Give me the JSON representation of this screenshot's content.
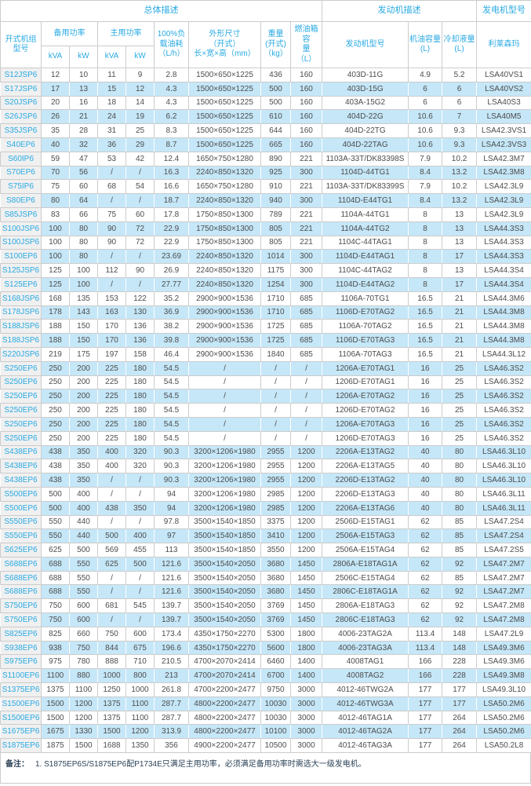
{
  "table": {
    "header": {
      "group_overall": "总体描述",
      "group_engine": "发动机描述",
      "group_alternator": "发电机型号",
      "col_model": "开式机组\n型号",
      "col_standby_power": "备用功率",
      "col_prime_power": "主用功率",
      "unit_kva": "kVA",
      "unit_kw": "kW",
      "col_fuel_consumption": "100%负\n载油耗\n（L/h）",
      "col_dimensions": "外形尺寸\n（开式）\n长×宽×高（mm）",
      "col_weight": "重量\n(开式)\n（kg）",
      "col_tank_capacity": "燃油箱容\n量\n（L）",
      "col_engine_model": "发动机型号",
      "col_oil_capacity": "机油容量\n(L)",
      "col_coolant_capacity": "冷却液量\n(L)",
      "col_alternator_brand": "利莱森玛"
    },
    "columns": [
      "model",
      "standby-kva",
      "standby-kw",
      "prime-kva",
      "prime-kw",
      "fuel-consumption",
      "dimensions",
      "weight",
      "tank-capacity",
      "engine-model",
      "oil-capacity",
      "coolant-capacity",
      "alternator-model"
    ],
    "rows": [
      [
        "S12JSP6",
        "12",
        "10",
        "11",
        "9",
        "2.8",
        "1500×650×1225",
        "436",
        "160",
        "403D-11G",
        "4.9",
        "5.2",
        "LSA40VS1"
      ],
      [
        "S17JSP6",
        "17",
        "13",
        "15",
        "12",
        "4.3",
        "1500×650×1225",
        "500",
        "160",
        "403D-15G",
        "6",
        "6",
        "LSA40VS2"
      ],
      [
        "S20JSP6",
        "20",
        "16",
        "18",
        "14",
        "4.3",
        "1500×650×1225",
        "500",
        "160",
        "403A-15G2",
        "6",
        "6",
        "LSA40S3"
      ],
      [
        "S26JSP6",
        "26",
        "21",
        "24",
        "19",
        "6.2",
        "1500×650×1225",
        "610",
        "160",
        "404D-22G",
        "10.6",
        "7",
        "LSA40M5"
      ],
      [
        "S35JSP6",
        "35",
        "28",
        "31",
        "25",
        "8.3",
        "1500×650×1225",
        "644",
        "160",
        "404D-22TG",
        "10.6",
        "9.3",
        "LSA42.3VS1"
      ],
      [
        "S40EP6",
        "40",
        "32",
        "36",
        "29",
        "8.7",
        "1500×650×1225",
        "665",
        "160",
        "404D-22TAG",
        "10.6",
        "9.3",
        "LSA42.3VS3"
      ],
      [
        "S60IP6",
        "59",
        "47",
        "53",
        "42",
        "12.4",
        "1650×750×1280",
        "890",
        "221",
        "1103A-33T/DK83398S",
        "7.9",
        "10.2",
        "LSA42.3M7"
      ],
      [
        "S70EP6",
        "70",
        "56",
        "/",
        "/",
        "16.3",
        "2240×850×1320",
        "925",
        "300",
        "1104D-44TG1",
        "8.4",
        "13.2",
        "LSA42.3M8"
      ],
      [
        "S75IP6",
        "75",
        "60",
        "68",
        "54",
        "16.6",
        "1650×750×1280",
        "910",
        "221",
        "1103A-33T/DK83399S",
        "7.9",
        "10.2",
        "LSA42.3L9"
      ],
      [
        "S80EP6",
        "80",
        "64",
        "/",
        "/",
        "18.7",
        "2240×850×1320",
        "940",
        "300",
        "1104D-E44TG1",
        "8.4",
        "13.2",
        "LSA42.3L9"
      ],
      [
        "S85JSP6",
        "83",
        "66",
        "75",
        "60",
        "17.8",
        "1750×850×1300",
        "789",
        "221",
        "1104A-44TG1",
        "8",
        "13",
        "LSA42.3L9"
      ],
      [
        "S100JSP6",
        "100",
        "80",
        "90",
        "72",
        "22.9",
        "1750×850×1300",
        "805",
        "221",
        "1104A-44TG2",
        "8",
        "13",
        "LSA44.3S3"
      ],
      [
        "S100JSP6",
        "100",
        "80",
        "90",
        "72",
        "22.9",
        "1750×850×1300",
        "805",
        "221",
        "1104C-44TAG1",
        "8",
        "13",
        "LSA44.3S3"
      ],
      [
        "S100EP6",
        "100",
        "80",
        "/",
        "/",
        "23.69",
        "2240×850×1320",
        "1014",
        "300",
        "1104D-E44TAG1",
        "8",
        "17",
        "LSA44.3S3"
      ],
      [
        "S125JSP6",
        "125",
        "100",
        "112",
        "90",
        "26.9",
        "2240×850×1320",
        "1175",
        "300",
        "1104C-44TAG2",
        "8",
        "13",
        "LSA44.3S4"
      ],
      [
        "S125EP6",
        "125",
        "100",
        "/",
        "/",
        "27.77",
        "2240×850×1320",
        "1254",
        "300",
        "1104D-E44TAG2",
        "8",
        "17",
        "LSA44.3S4"
      ],
      [
        "S168JSP6",
        "168",
        "135",
        "153",
        "122",
        "35.2",
        "2900×900×1536",
        "1710",
        "685",
        "1106A-70TG1",
        "16.5",
        "21",
        "LSA44.3M6"
      ],
      [
        "S178JSP6",
        "178",
        "143",
        "163",
        "130",
        "36.9",
        "2900×900×1536",
        "1710",
        "685",
        "1106D-E70TAG2",
        "16.5",
        "21",
        "LSA44.3M8"
      ],
      [
        "S188JSP6",
        "188",
        "150",
        "170",
        "136",
        "38.2",
        "2900×900×1536",
        "1725",
        "685",
        "1106A-70TAG2",
        "16.5",
        "21",
        "LSA44.3M8"
      ],
      [
        "S188JSP6",
        "188",
        "150",
        "170",
        "136",
        "39.8",
        "2900×900×1536",
        "1725",
        "685",
        "1106D-E70TAG3",
        "16.5",
        "21",
        "LSA44.3M8"
      ],
      [
        "S220JSP6",
        "219",
        "175",
        "197",
        "158",
        "46.4",
        "2900×900×1536",
        "1840",
        "685",
        "1106A-70TAG3",
        "16.5",
        "21",
        "LSA44.3L12"
      ],
      [
        "S250EP6",
        "250",
        "200",
        "225",
        "180",
        "54.5",
        "/",
        "/",
        "/",
        "1206A-E70TAG1",
        "16",
        "25",
        "LSA46.3S2"
      ],
      [
        "S250EP6",
        "250",
        "200",
        "225",
        "180",
        "54.5",
        "/",
        "/",
        "/",
        "1206D-E70TAG1",
        "16",
        "25",
        "LSA46.3S2"
      ],
      [
        "S250EP6",
        "250",
        "200",
        "225",
        "180",
        "54.5",
        "/",
        "/",
        "/",
        "1206A-E70TAG2",
        "16",
        "25",
        "LSA46.3S2"
      ],
      [
        "S250EP6",
        "250",
        "200",
        "225",
        "180",
        "54.5",
        "/",
        "/",
        "/",
        "1206D-E70TAG2",
        "16",
        "25",
        "LSA46.3S2"
      ],
      [
        "S250EP6",
        "250",
        "200",
        "225",
        "180",
        "54.5",
        "/",
        "/",
        "/",
        "1206A-E70TAG3",
        "16",
        "25",
        "LSA46.3S2"
      ],
      [
        "S250EP6",
        "250",
        "200",
        "225",
        "180",
        "54.5",
        "/",
        "/",
        "/",
        "1206D-E70TAG3",
        "16",
        "25",
        "LSA46.3S2"
      ],
      [
        "S438EP6",
        "438",
        "350",
        "400",
        "320",
        "90.3",
        "3200×1206×1980",
        "2955",
        "1200",
        "2206A-E13TAG2",
        "40",
        "80",
        "LSA46.3L10"
      ],
      [
        "S438EP6",
        "438",
        "350",
        "400",
        "320",
        "90.3",
        "3200×1206×1980",
        "2955",
        "1200",
        "2206A-E13TAG5",
        "40",
        "80",
        "LSA46.3L10"
      ],
      [
        "S438EP6",
        "438",
        "350",
        "/",
        "/",
        "90.3",
        "3200×1206×1980",
        "2955",
        "1200",
        "2206D-E13TAG2",
        "40",
        "80",
        "LSA46.3L10"
      ],
      [
        "S500EP6",
        "500",
        "400",
        "/",
        "/",
        "94",
        "3200×1206×1980",
        "2985",
        "1200",
        "2206D-E13TAG3",
        "40",
        "80",
        "LSA46.3L11"
      ],
      [
        "S500EP6",
        "500",
        "400",
        "438",
        "350",
        "94",
        "3200×1206×1980",
        "2985",
        "1200",
        "2206A-E13TAG6",
        "40",
        "80",
        "LSA46.3L11"
      ],
      [
        "S550EP6",
        "550",
        "440",
        "/",
        "/",
        "97.8",
        "3500×1540×1850",
        "3375",
        "1200",
        "2506D-E15TAG1",
        "62",
        "85",
        "LSA47.2S4"
      ],
      [
        "S550EP6",
        "550",
        "440",
        "500",
        "400",
        "97",
        "3500×1540×1850",
        "3410",
        "1200",
        "2506A-E15TAG3",
        "62",
        "85",
        "LSA47.2S4"
      ],
      [
        "S625EP6",
        "625",
        "500",
        "569",
        "455",
        "113",
        "3500×1540×1850",
        "3550",
        "1200",
        "2506A-E15TAG4",
        "62",
        "85",
        "LSA47.2S5"
      ],
      [
        "S688EP6",
        "688",
        "550",
        "625",
        "500",
        "121.6",
        "3500×1540×2050",
        "3680",
        "1450",
        "2806A-E18TAG1A",
        "62",
        "92",
        "LSA47.2M7"
      ],
      [
        "S688EP6",
        "688",
        "550",
        "/",
        "/",
        "121.6",
        "3500×1540×2050",
        "3680",
        "1450",
        "2506C-E15TAG4",
        "62",
        "85",
        "LSA47.2M7"
      ],
      [
        "S688EP6",
        "688",
        "550",
        "/",
        "/",
        "121.6",
        "3500×1540×2050",
        "3680",
        "1450",
        "2806C-E18TAG1A",
        "62",
        "92",
        "LSA47.2M7"
      ],
      [
        "S750EP6",
        "750",
        "600",
        "681",
        "545",
        "139.7",
        "3500×1540×2050",
        "3769",
        "1450",
        "2806A-E18TAG3",
        "62",
        "92",
        "LSA47.2M8"
      ],
      [
        "S750EP6",
        "750",
        "600",
        "/",
        "/",
        "139.7",
        "3500×1540×2050",
        "3769",
        "1450",
        "2806C-E18TAG3",
        "62",
        "92",
        "LSA47.2M8"
      ],
      [
        "S825EP6",
        "825",
        "660",
        "750",
        "600",
        "173.4",
        "4350×1750×2270",
        "5300",
        "1800",
        "4006-23TAG2A",
        "113.4",
        "148",
        "LSA47.2L9"
      ],
      [
        "S938EP6",
        "938",
        "750",
        "844",
        "675",
        "196.6",
        "4350×1750×2270",
        "5600",
        "1800",
        "4006-23TAG3A",
        "113.4",
        "148",
        "LSA49.3M6"
      ],
      [
        "S975EP6",
        "975",
        "780",
        "888",
        "710",
        "210.5",
        "4700×2070×2414",
        "6460",
        "1400",
        "4008TAG1",
        "166",
        "228",
        "LSA49.3M6"
      ],
      [
        "S1100EP6",
        "1100",
        "880",
        "1000",
        "800",
        "213",
        "4700×2070×2414",
        "6700",
        "1400",
        "4008TAG2",
        "166",
        "228",
        "LSA49.3M8"
      ],
      [
        "S1375EP6",
        "1375",
        "1100",
        "1250",
        "1000",
        "261.8",
        "4700×2200×2477",
        "9750",
        "3000",
        "4012-46TWG2A",
        "177",
        "177",
        "LSA49.3L10"
      ],
      [
        "S1500EP6",
        "1500",
        "1200",
        "1375",
        "1100",
        "287.7",
        "4800×2200×2477",
        "10030",
        "3000",
        "4012-46TWG3A",
        "177",
        "177",
        "LSA50.2M6"
      ],
      [
        "S1500EP6",
        "1500",
        "1200",
        "1375",
        "1100",
        "287.7",
        "4800×2200×2477",
        "10030",
        "3000",
        "4012-46TAG1A",
        "177",
        "264",
        "LSA50.2M6"
      ],
      [
        "S1675EP6",
        "1675",
        "1330",
        "1500",
        "1200",
        "313.9",
        "4800×2200×2477",
        "10100",
        "3000",
        "4012-46TAG2A",
        "177",
        "264",
        "LSA50.2M6"
      ],
      [
        "S1875EP6",
        "1875",
        "1500",
        "1688",
        "1350",
        "356",
        "4900×2200×2477",
        "10500",
        "3000",
        "4012-46TAG3A",
        "177",
        "264",
        "LSA50.2L8"
      ]
    ]
  },
  "footer": {
    "note_label": "备注：",
    "note_text": "1.  S1875EP6S/S1875EP6配P1734E只满足主用功率，必须满足备用功率时需选大一级发电机。"
  },
  "colors": {
    "accent": "#29aae3",
    "row_alt": "#c5e7f8",
    "model_col_bg": "#f0f0f0",
    "border": "#cccccc",
    "text": "#4d4d4d",
    "note": "#2b4257"
  }
}
